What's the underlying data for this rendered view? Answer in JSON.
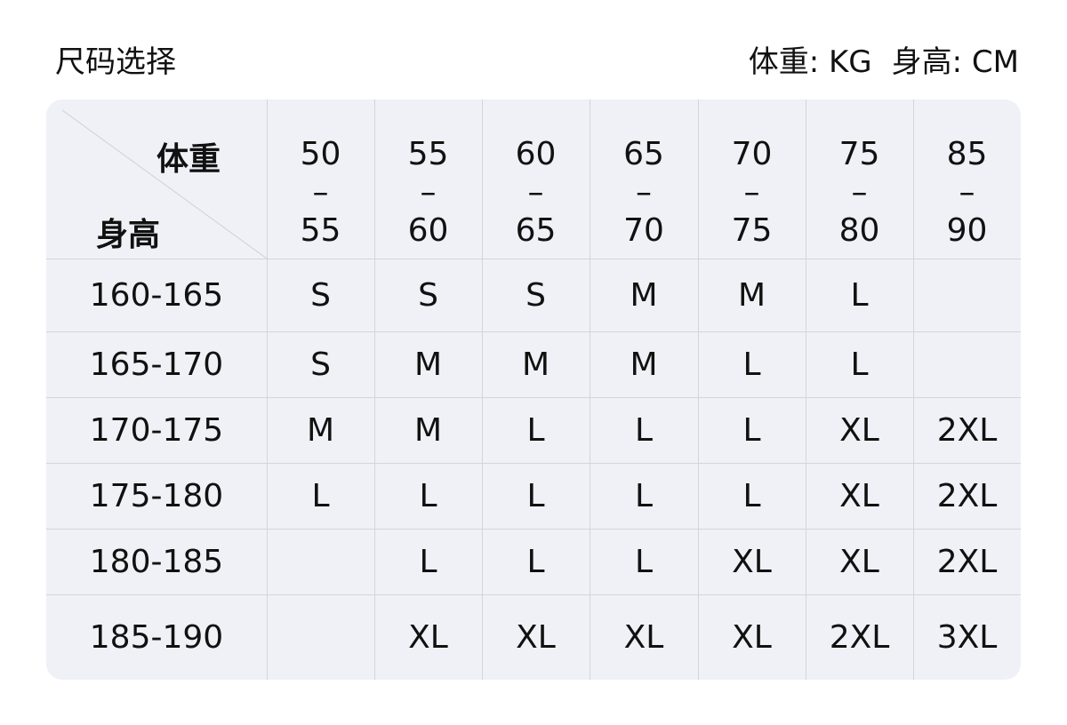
{
  "header": {
    "title": "尺码选择",
    "units": [
      "体重: KG",
      "身高: CM"
    ]
  },
  "table": {
    "corner": {
      "weight_label": "体重",
      "height_label": "身高"
    },
    "weight_ranges": [
      {
        "from": "50",
        "sep": "–",
        "to": "55"
      },
      {
        "from": "55",
        "sep": "–",
        "to": "60"
      },
      {
        "from": "60",
        "sep": "–",
        "to": "65"
      },
      {
        "from": "65",
        "sep": "–",
        "to": "70"
      },
      {
        "from": "70",
        "sep": "–",
        "to": "75"
      },
      {
        "from": "75",
        "sep": "–",
        "to": "80"
      },
      {
        "from": "85",
        "sep": "–",
        "to": "90"
      }
    ],
    "rows": [
      {
        "height": "160-165",
        "sizes": [
          "S",
          "S",
          "S",
          "M",
          "M",
          "L",
          ""
        ]
      },
      {
        "height": "165-170",
        "sizes": [
          "S",
          "M",
          "M",
          "M",
          "L",
          "L",
          ""
        ]
      },
      {
        "height": "170-175",
        "sizes": [
          "M",
          "M",
          "L",
          "L",
          "L",
          "XL",
          "2XL"
        ]
      },
      {
        "height": "175-180",
        "sizes": [
          "L",
          "L",
          "L",
          "L",
          "L",
          "XL",
          "2XL"
        ]
      },
      {
        "height": "180-185",
        "sizes": [
          "",
          "L",
          "L",
          "L",
          "XL",
          "XL",
          "2XL"
        ]
      },
      {
        "height": "185-190",
        "sizes": [
          "",
          "XL",
          "XL",
          "XL",
          "XL",
          "2XL",
          "3XL"
        ]
      }
    ]
  }
}
